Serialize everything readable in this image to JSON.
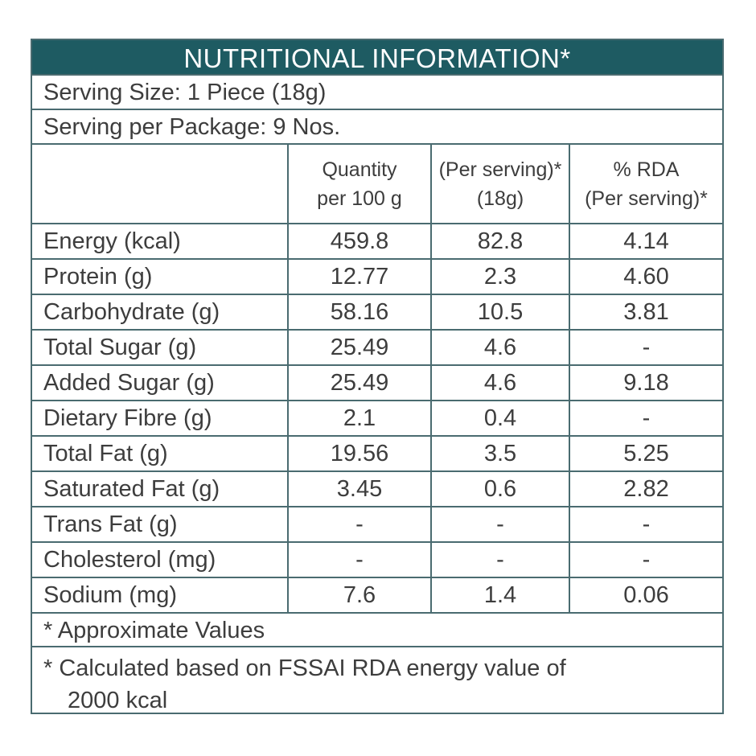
{
  "title": "NUTRITIONAL INFORMATION*",
  "serving_size": "Serving Size: 1 Piece (18g)",
  "serving_per_package": "Serving per Package: 9 Nos.",
  "columns": {
    "nutrient": "",
    "qty": [
      "Quantity",
      "per 100 g"
    ],
    "per_serving": [
      "(Per serving)*",
      "(18g)"
    ],
    "rda": [
      "% RDA",
      "(Per serving)*"
    ]
  },
  "rows": [
    {
      "name": "Energy (kcal)",
      "qty": "459.8",
      "per_serving": "82.8",
      "rda": "4.14"
    },
    {
      "name": "Protein (g)",
      "qty": "12.77",
      "per_serving": "2.3",
      "rda": "4.60"
    },
    {
      "name": "Carbohydrate (g)",
      "qty": "58.16",
      "per_serving": "10.5",
      "rda": "3.81"
    },
    {
      "name": "Total Sugar (g)",
      "qty": "25.49",
      "per_serving": "4.6",
      "rda": "-"
    },
    {
      "name": "Added Sugar (g)",
      "qty": "25.49",
      "per_serving": "4.6",
      "rda": "9.18"
    },
    {
      "name": "Dietary Fibre (g)",
      "qty": "2.1",
      "per_serving": "0.4",
      "rda": "-"
    },
    {
      "name": "Total Fat (g)",
      "qty": "19.56",
      "per_serving": "3.5",
      "rda": "5.25"
    },
    {
      "name": "Saturated Fat (g)",
      "qty": "3.45",
      "per_serving": "0.6",
      "rda": "2.82"
    },
    {
      "name": "Trans Fat (g)",
      "qty": "-",
      "per_serving": "-",
      "rda": "-"
    },
    {
      "name": "Cholesterol (mg)",
      "qty": "-",
      "per_serving": "-",
      "rda": "-"
    },
    {
      "name": "Sodium (mg)",
      "qty": "7.6",
      "per_serving": "1.4",
      "rda": "0.06"
    }
  ],
  "footnotes": {
    "approx": "* Approximate Values",
    "calc_line1": "* Calculated based on FSSAI RDA energy value of",
    "calc_line2": "2000 kcal"
  },
  "colors": {
    "header_bg": "#1e5b62",
    "border": "#4a6b70",
    "text": "#3d3d3d"
  }
}
